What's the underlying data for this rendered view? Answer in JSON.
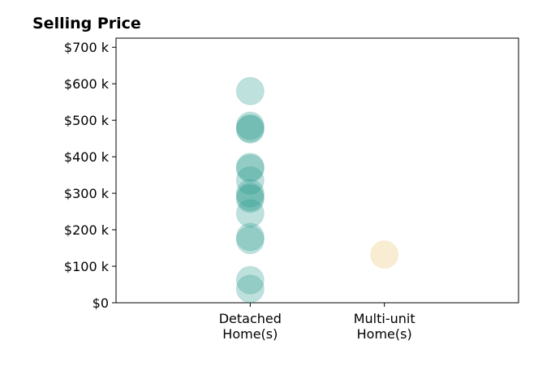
{
  "chart_data": {
    "type": "scatter",
    "title": "Selling Price",
    "xlabel": "",
    "ylabel": "",
    "categories": [
      "Detached\nHome(s)",
      "Multi-unit\nHome(s)"
    ],
    "xlim": [
      -1,
      2
    ],
    "ylim": [
      0,
      725
    ],
    "y_ticks": [
      {
        "value": 0,
        "label": "$0"
      },
      {
        "value": 100,
        "label": "$100 k"
      },
      {
        "value": 200,
        "label": "$200 k"
      },
      {
        "value": 300,
        "label": "$300 k"
      },
      {
        "value": 400,
        "label": "$400 k"
      },
      {
        "value": 500,
        "label": "$500 k"
      },
      {
        "value": 600,
        "label": "$600 k"
      },
      {
        "value": 700,
        "label": "$700 k"
      }
    ],
    "grid": false,
    "series": [
      {
        "category_index": 0,
        "color": "#2a9d8f",
        "opacity": 0.3,
        "values": [
          580,
          485,
          478,
          475,
          372,
          368,
          335,
          300,
          290,
          285,
          245,
          180,
          172,
          62,
          38
        ]
      },
      {
        "category_index": 1,
        "color": "#e9c46a",
        "opacity": 0.3,
        "values": [
          132
        ]
      }
    ]
  }
}
